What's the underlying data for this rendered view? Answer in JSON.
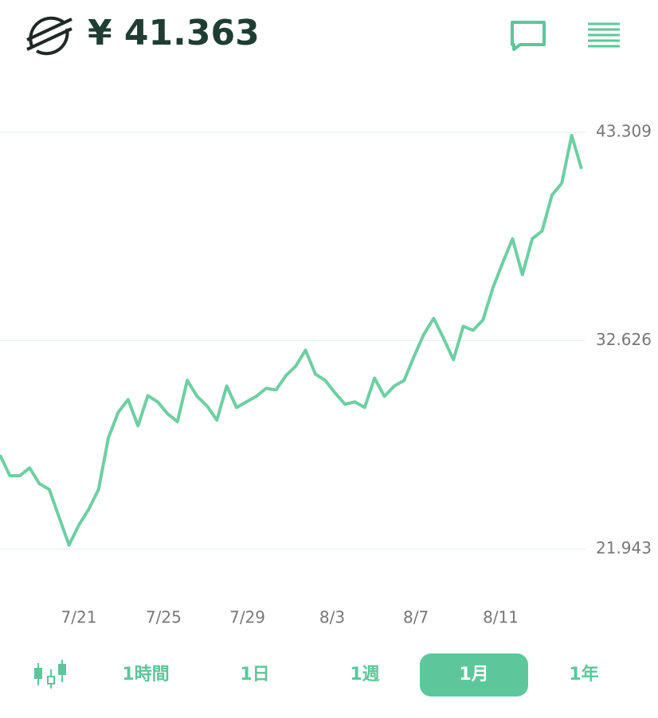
{
  "header": {
    "price": "¥ 41.363"
  },
  "chart_data": {
    "type": "line",
    "x": [
      0,
      1,
      2,
      3,
      4,
      5,
      6,
      7,
      8,
      9,
      10,
      11,
      12,
      13,
      14,
      15,
      16,
      17,
      18,
      19,
      20,
      21,
      22,
      23,
      24,
      25,
      26,
      27,
      28,
      29,
      30,
      31,
      32,
      33,
      34,
      35,
      36,
      37,
      38,
      39,
      40,
      41,
      42,
      43,
      44,
      45,
      46,
      47,
      48,
      49,
      50,
      51,
      52,
      53,
      54,
      55,
      56,
      57,
      58,
      59
    ],
    "series": [
      {
        "color": "#6dcfa3",
        "values": [
          26.76,
          25.7,
          25.7,
          26.1,
          25.29,
          25.0,
          23.57,
          22.15,
          23.17,
          23.98,
          25.0,
          27.65,
          28.96,
          29.61,
          28.26,
          29.81,
          29.49,
          28.88,
          28.47,
          30.59,
          29.77,
          29.28,
          28.55,
          30.3,
          29.2,
          29.49,
          29.77,
          30.18,
          30.1,
          30.83,
          31.32,
          32.14,
          30.91,
          30.59,
          29.94,
          29.37,
          29.49,
          29.2,
          30.71,
          29.77,
          30.3,
          30.59,
          31.81,
          32.95,
          33.77,
          32.75,
          31.65,
          33.36,
          33.16,
          33.69,
          35.32,
          36.62,
          37.85,
          36.01,
          37.85,
          38.25,
          40.09,
          40.7,
          43.15,
          41.43
        ]
      }
    ],
    "xlim": [
      0,
      59
    ],
    "xticks": [
      {
        "value": 8.0,
        "label": "7/21"
      },
      {
        "value": 16.6,
        "label": "7/25"
      },
      {
        "value": 25.1,
        "label": "7/29"
      },
      {
        "value": 33.7,
        "label": "8/3"
      },
      {
        "value": 42.2,
        "label": "8/7"
      },
      {
        "value": 50.8,
        "label": "8/11"
      }
    ],
    "ylim": [
      21.943,
      43.309
    ],
    "yticks": [
      21.943,
      32.626,
      43.309
    ],
    "grid": true
  },
  "ranges": {
    "buttons": [
      "1時間",
      "1日",
      "1週",
      "1月",
      "1年"
    ],
    "selected": 3
  }
}
